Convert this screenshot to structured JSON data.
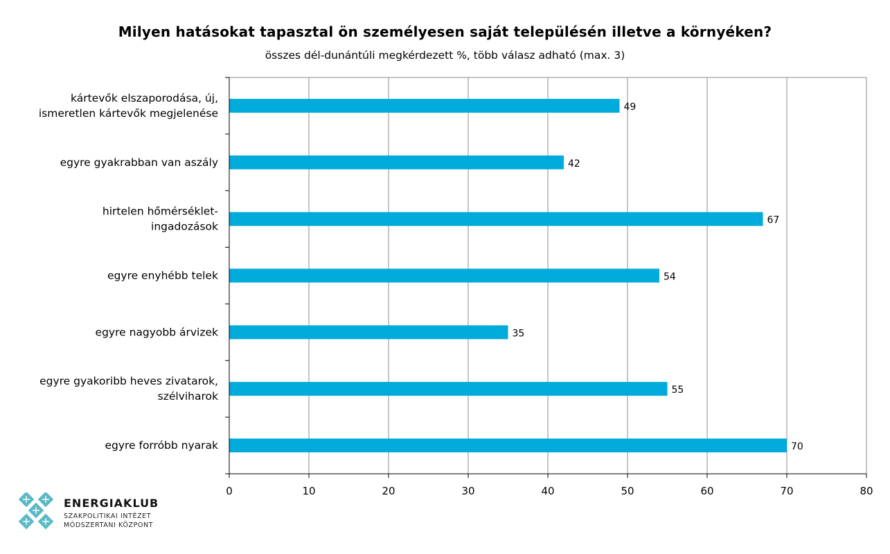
{
  "chart_data": {
    "type": "bar",
    "orientation": "horizontal",
    "title": "Milyen hatásokat tapasztal ön személyesen saját településén illetve a környéken?",
    "subtitle": "összes dél-dunántúli megkérdezett %, több válasz adható (max. 3)",
    "categories": [
      [
        "kártevők elszaporodása, új,",
        "ismeretlen kártevők megjelenése"
      ],
      [
        "egyre gyakrabban van aszály"
      ],
      [
        "hirtelen hőmérséklet-",
        "ingadozások"
      ],
      [
        "egyre enyhébb telek"
      ],
      [
        "egyre nagyobb árvizek"
      ],
      [
        "egyre gyakoribb heves zivatarok,",
        "szélviharok"
      ],
      [
        "egyre forróbb nyarak"
      ]
    ],
    "values": [
      49,
      42,
      67,
      54,
      35,
      55,
      70
    ],
    "xlim": [
      0,
      80
    ],
    "xticks": [
      0,
      10,
      20,
      30,
      40,
      50,
      60,
      70,
      80
    ],
    "grid": true,
    "bar_color": "#00aadb"
  },
  "logo": {
    "name": "ENERGIAKLUB",
    "line1": "SZAKPOLITIKAI INTÉZET",
    "line2": "MÓDSZERTANI KÖZPONT",
    "icon": "energiaklub-logo-icon",
    "color": "#5ab9c6"
  }
}
